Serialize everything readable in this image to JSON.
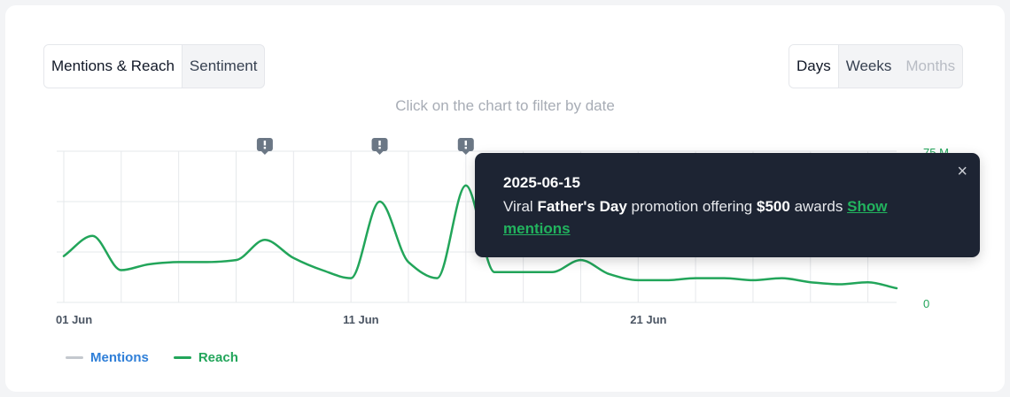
{
  "tabs": {
    "mentions_reach": "Mentions & Reach",
    "sentiment": "Sentiment"
  },
  "period": {
    "days": "Days",
    "weeks": "Weeks",
    "months": "Months"
  },
  "hint": "Click on the chart to filter by date",
  "colors": {
    "reach": "#22a55a",
    "mentions": "#c4c8ce",
    "mentions_label": "#2f7fd8",
    "grid": "#e6e8eb",
    "marker": "#6b7785",
    "tooltip_bg": "#1d2433"
  },
  "tooltip": {
    "date": "2025-06-15",
    "text_before": "Viral",
    "bold1": "Father's Day",
    "text_mid": "promotion offering",
    "bold2": "$500",
    "text_after": "awards",
    "link": "Show mentions",
    "close": "×"
  },
  "chart_data": {
    "type": "line",
    "x": [
      "2025-06-01",
      "2025-06-02",
      "2025-06-03",
      "2025-06-04",
      "2025-06-05",
      "2025-06-06",
      "2025-06-07",
      "2025-06-08",
      "2025-06-09",
      "2025-06-10",
      "2025-06-11",
      "2025-06-12",
      "2025-06-13",
      "2025-06-14",
      "2025-06-15",
      "2025-06-16",
      "2025-06-17",
      "2025-06-18",
      "2025-06-19",
      "2025-06-20",
      "2025-06-21",
      "2025-06-22",
      "2025-06-23",
      "2025-06-24",
      "2025-06-25",
      "2025-06-26",
      "2025-06-27",
      "2025-06-28",
      "2025-06-29",
      "2025-06-30"
    ],
    "x_tick_labels": [
      {
        "date": "2025-06-01",
        "label": "01 Jun"
      },
      {
        "date": "2025-06-11",
        "label": "11 Jun"
      },
      {
        "date": "2025-06-21",
        "label": "21 Jun"
      }
    ],
    "series": [
      {
        "name": "Reach",
        "values": [
          23,
          33,
          16,
          19,
          20,
          20,
          21,
          31,
          22,
          16,
          12,
          50,
          20,
          12,
          58,
          15,
          15,
          15,
          21,
          14,
          11,
          11,
          12,
          12,
          11,
          12,
          10,
          9,
          10,
          7
        ]
      }
    ],
    "legend": [
      "Mentions",
      "Reach"
    ],
    "legend_position": "bottom-left",
    "y_right_tick_labels": [
      {
        "value": 0,
        "label": "0"
      },
      {
        "value": 75,
        "label": "75 M"
      }
    ],
    "ylim": [
      0,
      75
    ],
    "grid": true,
    "annotation_dates": [
      "2025-06-08",
      "2025-06-12",
      "2025-06-15"
    ]
  }
}
